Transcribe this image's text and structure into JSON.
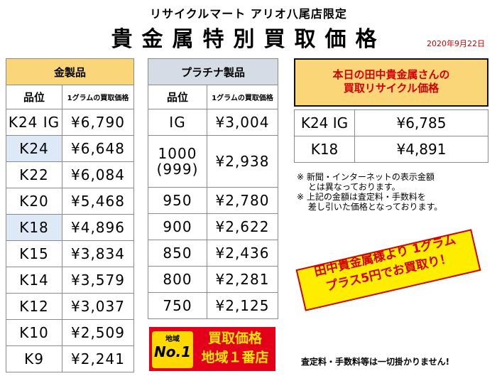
{
  "header": {
    "shop": "リサイクルマート アリオ八尾店限定",
    "title": "貴金属特別買取価格",
    "date": "2020年9月22日"
  },
  "gold": {
    "title": "金製品",
    "col_grade": "品位",
    "col_price": "1グラムの買取価格",
    "rows": [
      {
        "grade": "K24 IG",
        "price": "¥6,790"
      },
      {
        "grade": "K24",
        "price": "¥6,648"
      },
      {
        "grade": "K22",
        "price": "¥6,084"
      },
      {
        "grade": "K20",
        "price": "¥5,468"
      },
      {
        "grade": "K18",
        "price": "¥4,896"
      },
      {
        "grade": "K15",
        "price": "¥3,834"
      },
      {
        "grade": "K14",
        "price": "¥3,579"
      },
      {
        "grade": "K12",
        "price": "¥3,037"
      },
      {
        "grade": "K10",
        "price": "¥2,509"
      },
      {
        "grade": "K9",
        "price": "¥2,241"
      }
    ]
  },
  "platinum": {
    "title": "プラチナ製品",
    "col_grade": "品位",
    "col_price": "1グラムの買取価格",
    "rows": [
      {
        "grade": "IG",
        "price": "¥3,004"
      },
      {
        "grade": "1000",
        "grade2": "(999)",
        "price": "¥2,938"
      },
      {
        "grade": "950",
        "price": "¥2,780"
      },
      {
        "grade": "900",
        "price": "¥2,622"
      },
      {
        "grade": "850",
        "price": "¥2,436"
      },
      {
        "grade": "800",
        "price": "¥2,281"
      },
      {
        "grade": "750",
        "price": "¥2,125"
      }
    ]
  },
  "tanaka": {
    "line1": "本日の田中貴金属さんの",
    "line2": "買取リサイクル価格",
    "rows": [
      {
        "grade": "K24 IG",
        "price": "¥6,785"
      },
      {
        "grade": "K18",
        "price": "¥4,891"
      }
    ]
  },
  "notes": [
    "※ 新聞・インターネットの表示金額",
    "　 とは異なっております。",
    "※ 上記の金額は査定料・手数料を",
    "　 差し引いた価格となっております。"
  ],
  "promo": {
    "line1": "田中貴金属様より 1グラム",
    "line2": "プラス5円でお買取り！"
  },
  "badge": {
    "region": "地域",
    "no1": "No.1",
    "line1": "買取価格",
    "line2": "地域１番店"
  },
  "footer": "査定料・手数料等は一切掛かりません!",
  "colors": {
    "gold_header": "#fbd679",
    "platinum_header": "#d6dce5",
    "accent_red": "#d40000",
    "promo_yellow": "#ffed00"
  }
}
